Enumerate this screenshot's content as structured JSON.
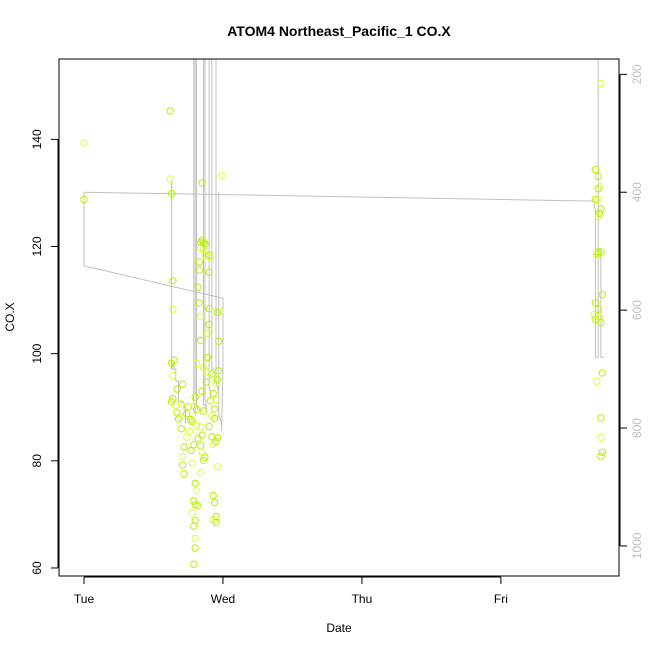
{
  "chart_data": {
    "type": "scatter",
    "title": "ATOM4 Northeast_Pacific_1 CO.X",
    "xlabel": "Date",
    "ylabel": "CO.X",
    "x_unit": "days since Tue 00:00",
    "xlim": [
      -0.18,
      3.85
    ],
    "ylim": [
      58.5,
      155
    ],
    "x_ticks": [
      {
        "label": "Tue",
        "value": 0
      },
      {
        "label": "Wed",
        "value": 1
      },
      {
        "label": "Thu",
        "value": 2
      },
      {
        "label": "Fri",
        "value": 3
      }
    ],
    "y_ticks": [
      60,
      80,
      100,
      120,
      140
    ],
    "y2_label_ticks": [
      "200",
      "400",
      "600",
      "800",
      "1000"
    ],
    "y2_ticks": [
      200,
      400,
      600,
      800,
      1000
    ],
    "y2lim": [
      174,
      1051
    ],
    "y2_reversed": true,
    "colors": {
      "points": "#b5f000",
      "points_alt": "#dcff3a",
      "profile": "#c0c0c0",
      "axis": "#000000"
    },
    "series": [
      {
        "points": [
          [
            0.0,
            139.3
          ],
          [
            0.0,
            128.8
          ],
          [
            0.62,
            145.3
          ],
          [
            0.62,
            132.6
          ],
          [
            0.63,
            129.9
          ],
          [
            0.64,
            113.6
          ],
          [
            0.64,
            108.3
          ],
          [
            0.63,
            98.2
          ],
          [
            0.65,
            98.8
          ],
          [
            0.64,
            95.9
          ],
          [
            0.64,
            91.6
          ],
          [
            0.63,
            91.0
          ],
          [
            0.66,
            90.4
          ],
          [
            0.67,
            93.4
          ],
          [
            0.67,
            89.0
          ],
          [
            0.69,
            88.2
          ],
          [
            0.68,
            87.8
          ],
          [
            0.71,
            94.3
          ],
          [
            0.7,
            90.6
          ],
          [
            0.7,
            86.0
          ],
          [
            0.72,
            82.6
          ],
          [
            0.71,
            80.8
          ],
          [
            0.71,
            79.2
          ],
          [
            0.72,
            77.6
          ],
          [
            0.74,
            84.4
          ],
          [
            0.74,
            88.8
          ],
          [
            0.75,
            90.1
          ],
          [
            0.76,
            85.5
          ],
          [
            0.77,
            87.7
          ],
          [
            0.77,
            81.9
          ],
          [
            0.78,
            79.6
          ],
          [
            0.79,
            83.0
          ],
          [
            0.78,
            87.3
          ],
          [
            0.79,
            90.2
          ],
          [
            0.8,
            91.9
          ],
          [
            0.81,
            89.6
          ],
          [
            0.81,
            86.6
          ],
          [
            0.82,
            84.2
          ],
          [
            0.8,
            75.8
          ],
          [
            0.81,
            74.4
          ],
          [
            0.79,
            72.5
          ],
          [
            0.8,
            71.8
          ],
          [
            0.78,
            70.3
          ],
          [
            0.8,
            68.9
          ],
          [
            0.79,
            67.8
          ],
          [
            0.8,
            65.5
          ],
          [
            0.8,
            63.7
          ],
          [
            0.79,
            60.7
          ],
          [
            0.81,
            98.2
          ],
          [
            0.83,
            109.5
          ],
          [
            0.82,
            112.4
          ],
          [
            0.84,
            107.0
          ],
          [
            0.83,
            117.1
          ],
          [
            0.84,
            120.8
          ],
          [
            0.84,
            119.8
          ],
          [
            0.83,
            115.6
          ],
          [
            0.85,
            121.2
          ],
          [
            0.86,
            119.4
          ],
          [
            0.86,
            120.7
          ],
          [
            0.87,
            120.5
          ],
          [
            0.87,
            118.4
          ],
          [
            0.85,
            131.9
          ],
          [
            0.84,
            102.5
          ],
          [
            0.86,
            97.4
          ],
          [
            0.85,
            93.0
          ],
          [
            0.86,
            89.3
          ],
          [
            0.84,
            86.3
          ],
          [
            0.85,
            84.8
          ],
          [
            0.84,
            82.8
          ],
          [
            0.85,
            81.6
          ],
          [
            0.86,
            80.1
          ],
          [
            0.87,
            80.7
          ],
          [
            0.84,
            77.8
          ],
          [
            0.82,
            71.6
          ],
          [
            0.88,
            94.7
          ],
          [
            0.88,
            96.6
          ],
          [
            0.89,
            99.3
          ],
          [
            0.9,
            105.5
          ],
          [
            0.89,
            103.8
          ],
          [
            0.9,
            108.4
          ],
          [
            0.9,
            118.4
          ],
          [
            0.91,
            117.9
          ],
          [
            0.9,
            115.2
          ],
          [
            0.92,
            96.2
          ],
          [
            0.93,
            95.7
          ],
          [
            0.93,
            92.6
          ],
          [
            0.91,
            91.2
          ],
          [
            0.92,
            88.4
          ],
          [
            0.9,
            86.4
          ],
          [
            0.92,
            84.5
          ],
          [
            0.93,
            83.1
          ],
          [
            0.94,
            87.9
          ],
          [
            0.94,
            89.7
          ],
          [
            0.95,
            94.5
          ],
          [
            0.96,
            95.1
          ],
          [
            0.97,
            102.3
          ],
          [
            0.98,
            107.9
          ],
          [
            0.96,
            107.7
          ],
          [
            0.97,
            96.8
          ],
          [
            0.95,
            91.4
          ],
          [
            0.96,
            84.3
          ],
          [
            0.95,
            83.6
          ],
          [
            0.96,
            78.9
          ],
          [
            0.93,
            73.5
          ],
          [
            0.94,
            72.2
          ],
          [
            0.93,
            69.0
          ],
          [
            0.95,
            69.6
          ],
          [
            0.95,
            68.5
          ],
          [
            0.99,
            133.2
          ],
          [
            3.68,
            134.4
          ],
          [
            3.7,
            133.1
          ],
          [
            3.71,
            131.2
          ],
          [
            3.7,
            130.8
          ],
          [
            3.68,
            128.8
          ],
          [
            3.7,
            128.9
          ],
          [
            3.71,
            126.2
          ],
          [
            3.72,
            127.0
          ],
          [
            3.7,
            125.5
          ],
          [
            3.7,
            119.0
          ],
          [
            3.7,
            118.6
          ],
          [
            3.69,
            118.5
          ],
          [
            3.72,
            119.0
          ],
          [
            3.68,
            109.5
          ],
          [
            3.67,
            107.3
          ],
          [
            3.68,
            106.4
          ],
          [
            3.7,
            108.3
          ],
          [
            3.71,
            106.8
          ],
          [
            3.72,
            105.8
          ],
          [
            3.73,
            111.0
          ],
          [
            3.69,
            94.8
          ],
          [
            3.73,
            96.4
          ],
          [
            3.72,
            88.0
          ],
          [
            3.72,
            84.4
          ],
          [
            3.73,
            81.6
          ],
          [
            3.72,
            80.8
          ],
          [
            3.72,
            150.4
          ]
        ]
      }
    ],
    "profile_lines": [
      {
        "x": [
          0.0,
          0.0,
          0.0,
          0.0,
          1.0,
          1.0,
          1.0,
          0.99,
          0.99
        ],
        "y2": [
          400,
          415,
          465,
          525,
          580,
          600,
          700,
          800,
          805
        ]
      },
      {
        "x": [
          0.0,
          3.67,
          3.67,
          3.68,
          3.68,
          3.7,
          3.7
        ],
        "y2": [
          400,
          415,
          420,
          430,
          680,
          680,
          55
        ]
      },
      {
        "x": [
          0.63,
          0.63,
          0.63,
          0.64,
          0.65
        ],
        "y2": [
          380,
          600,
          700,
          690,
          700
        ]
      },
      {
        "x": [
          0.63,
          0.63,
          0.66,
          0.66,
          0.68,
          0.68,
          0.68
        ],
        "y2": [
          690,
          700,
          700,
          720,
          720,
          740,
          760
        ]
      },
      {
        "x": [
          0.68,
          0.68,
          0.72,
          0.72,
          0.73,
          0.73,
          0.75
        ],
        "y2": [
          750,
          755,
          757,
          770,
          770,
          785,
          785
        ]
      },
      {
        "x": [
          0.73,
          0.73,
          0.74
        ],
        "y2": [
          780,
          790,
          790
        ]
      },
      {
        "x": [
          0.79,
          0.79,
          0.8,
          0.8,
          0.8
        ],
        "y2": [
          55,
          760,
          760,
          770,
          780
        ]
      },
      {
        "x": [
          0.8,
          0.8,
          0.81,
          0.81
        ],
        "y2": [
          100,
          740,
          745,
          760
        ]
      },
      {
        "x": [
          0.81,
          0.81,
          0.82
        ],
        "y2": [
          55,
          760,
          770
        ]
      },
      {
        "x": [
          0.86,
          0.86,
          0.87,
          0.87
        ],
        "y2": [
          55,
          760,
          760,
          765
        ]
      },
      {
        "x": [
          0.87,
          0.87,
          0.88,
          0.88
        ],
        "y2": [
          55,
          750,
          760,
          770
        ]
      },
      {
        "x": [
          0.9,
          0.9,
          0.91,
          0.91
        ],
        "y2": [
          55,
          730,
          740,
          750
        ]
      },
      {
        "x": [
          0.92,
          0.92,
          0.93,
          0.93
        ],
        "y2": [
          55,
          700,
          700,
          705
        ]
      },
      {
        "x": [
          0.95,
          0.95,
          0.96,
          0.96,
          0.97
        ],
        "y2": [
          55,
          720,
          730,
          730,
          740
        ]
      },
      {
        "x": [
          0.97,
          0.97,
          0.99,
          0.99,
          0.99
        ],
        "y2": [
          400,
          780,
          790,
          800,
          805
        ]
      },
      {
        "x": [
          3.72,
          3.72,
          3.72,
          3.74
        ],
        "y2": [
          500,
          580,
          680,
          680
        ]
      }
    ]
  }
}
